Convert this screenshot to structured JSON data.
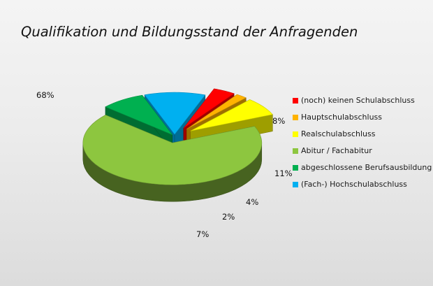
{
  "chart_data": {
    "type": "pie",
    "title": "Qualifikation und Bildungsstand der Anfragenden",
    "legend_position": "right",
    "slices": [
      {
        "label": "(noch) keinen Schulabschluss",
        "value": 4,
        "value_label": "4%",
        "color": "#ff0000"
      },
      {
        "label": "Hauptschulabschluss",
        "value": 2,
        "value_label": "2%",
        "color": "#ffb300"
      },
      {
        "label": "Realschulabschluss",
        "value": 7,
        "value_label": "7%",
        "color": "#ffff00"
      },
      {
        "label": "Abitur / Fachabitur",
        "value": 68,
        "value_label": "68%",
        "color": "#8dc63f"
      },
      {
        "label": "abgeschlossene Berufsausbildung",
        "value": 8,
        "value_label": "8%",
        "color": "#00b050"
      },
      {
        "label": "(Fach-) Hochschulabschluss",
        "value": 11,
        "value_label": "11%",
        "color": "#00b0f0"
      }
    ]
  }
}
